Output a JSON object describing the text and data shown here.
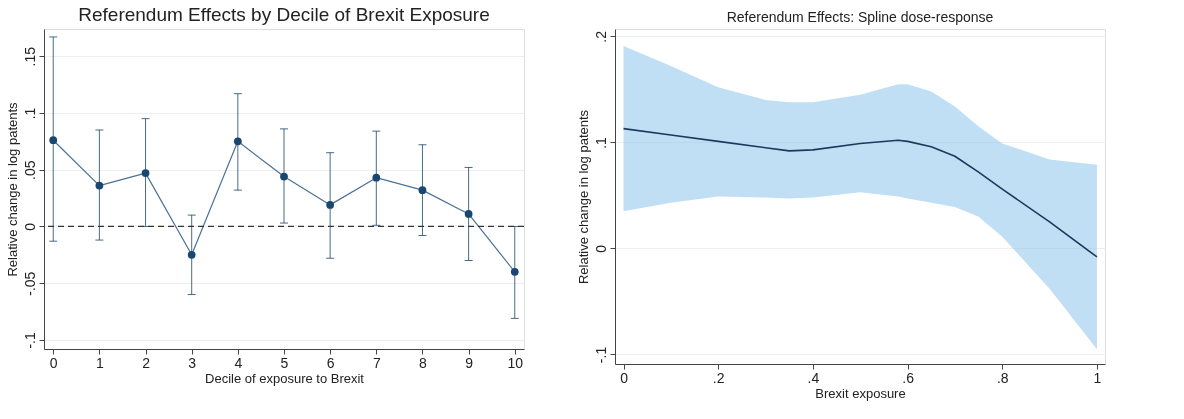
{
  "chart_data": [
    {
      "type": "line",
      "title": "Referendum Effects by Decile of Brexit Exposure",
      "xlabel": "Decile of exposure to Brexit",
      "ylabel": "Relative change in log patents",
      "x": [
        0,
        1,
        2,
        3,
        4,
        5,
        6,
        7,
        8,
        9,
        10
      ],
      "series": [
        {
          "color": "#1a476f",
          "values": [
            0.076,
            0.036,
            0.047,
            -0.025,
            0.075,
            0.044,
            0.019,
            0.043,
            0.032,
            0.011,
            -0.04
          ],
          "errors": [
            [
              -0.013,
              0.167
            ],
            [
              -0.012,
              0.085
            ],
            [
              0,
              0.095
            ],
            [
              -0.06,
              0.01
            ],
            [
              0.032,
              0.117
            ],
            [
              0.003,
              0.086
            ],
            [
              -0.028,
              0.065
            ],
            [
              0.001,
              0.084
            ],
            [
              -0.008,
              0.072
            ],
            [
              -0.03,
              0.052
            ],
            [
              -0.081,
              0
            ]
          ]
        }
      ],
      "xlim": [
        -0.2,
        10.2
      ],
      "xticks": [
        0,
        1,
        2,
        3,
        4,
        5,
        6,
        7,
        8,
        9,
        10
      ],
      "ylim": [
        -0.108,
        0.174
      ],
      "yticks": [
        {
          "value": -0.1,
          "label": "-.1"
        },
        {
          "value": -0.05,
          "label": "-.05"
        },
        {
          "value": 0,
          "label": "0"
        },
        {
          "value": 0.05,
          "label": ".05"
        },
        {
          "value": 0.1,
          "label": ".1"
        },
        {
          "value": 0.15,
          "label": ".15"
        }
      ],
      "ref_lines": [
        {
          "axis": "y",
          "value": 0,
          "color": "#333333",
          "line_style": "dashed"
        }
      ],
      "grid": "y",
      "marker": "circle",
      "line_style": "solid"
    },
    {
      "type": "line",
      "title": "Referendum Effects: Spline dose-response",
      "xlabel": "Brexit exposure",
      "ylabel": "Relative change in log patents",
      "series": [
        {
          "color": "#1a3a5c",
          "x": [
            0,
            0.1,
            0.2,
            0.3,
            0.35,
            0.4,
            0.5,
            0.58,
            0.6,
            0.65,
            0.7,
            0.75,
            0.8,
            0.9,
            1
          ],
          "values": [
            0.113,
            0.107,
            0.101,
            0.095,
            0.092,
            0.093,
            0.099,
            0.102,
            0.101,
            0.096,
            0.087,
            0.072,
            0.056,
            0.025,
            -0.008
          ],
          "lower": [
            0.035,
            0.043,
            0.049,
            0.048,
            0.047,
            0.048,
            0.053,
            0.049,
            0.047,
            0.043,
            0.039,
            0.03,
            0.011,
            -0.038,
            -0.095
          ],
          "upper": [
            0.191,
            0.172,
            0.152,
            0.14,
            0.138,
            0.138,
            0.145,
            0.155,
            0.155,
            0.148,
            0.134,
            0.115,
            0.099,
            0.084,
            0.079
          ]
        }
      ],
      "xlim": [
        -0.018,
        1.017
      ],
      "xticks": [
        {
          "value": 0,
          "label": "0"
        },
        {
          "value": 0.2,
          "label": ".2"
        },
        {
          "value": 0.4,
          "label": ".4"
        },
        {
          "value": 0.6,
          "label": ".6"
        },
        {
          "value": 0.8,
          "label": ".8"
        },
        {
          "value": 1,
          "label": "1"
        }
      ],
      "ylim": [
        -0.109,
        0.207
      ],
      "yticks": [
        {
          "value": -0.1,
          "label": "-.1"
        },
        {
          "value": 0,
          "label": "0"
        },
        {
          "value": 0.1,
          "label": ".1"
        },
        {
          "value": 0.2,
          "label": ".2"
        }
      ],
      "grid": "y",
      "marker": "none",
      "line_style": "solid"
    }
  ]
}
